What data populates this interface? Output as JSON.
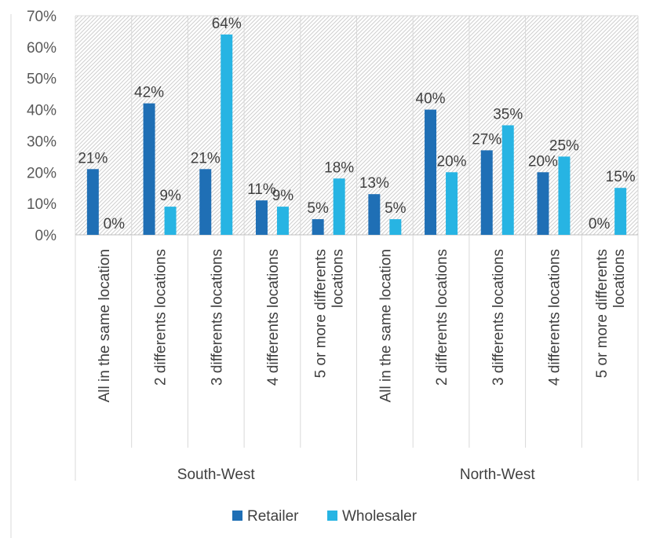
{
  "chart_data": {
    "type": "bar",
    "groups": [
      {
        "name": "South-West",
        "categories": [
          "All in the same location",
          "2 differents locations",
          "3 differents locations",
          "4 differents locations",
          "5 or more differents locations"
        ]
      },
      {
        "name": "North-West",
        "categories": [
          "All in the same location",
          "2 differents locations",
          "3 differents locations",
          "4 differents locations",
          "5 or more differents locations"
        ]
      }
    ],
    "series": [
      {
        "name": "Retailer",
        "color": "#1f6fb5",
        "values": [
          21,
          42,
          21,
          11,
          5,
          13,
          40,
          27,
          20,
          0
        ],
        "labels": [
          "21%",
          "42%",
          "21%",
          "11%",
          "5%",
          "13%",
          "40%",
          "27%",
          "20%",
          "0%"
        ]
      },
      {
        "name": "Wholesaler",
        "color": "#27b4e3",
        "values": [
          0,
          9,
          64,
          9,
          18,
          5,
          20,
          35,
          25,
          15
        ],
        "labels": [
          "0%",
          "9%",
          "64%",
          "9%",
          "18%",
          "5%",
          "20%",
          "35%",
          "25%",
          "15%"
        ]
      }
    ],
    "y_ticks": [
      "0%",
      "10%",
      "20%",
      "30%",
      "40%",
      "50%",
      "60%",
      "70%"
    ],
    "ylim": [
      0,
      70
    ],
    "grid": false,
    "plot_background": "diagonal hatch",
    "legend_position": "bottom"
  }
}
